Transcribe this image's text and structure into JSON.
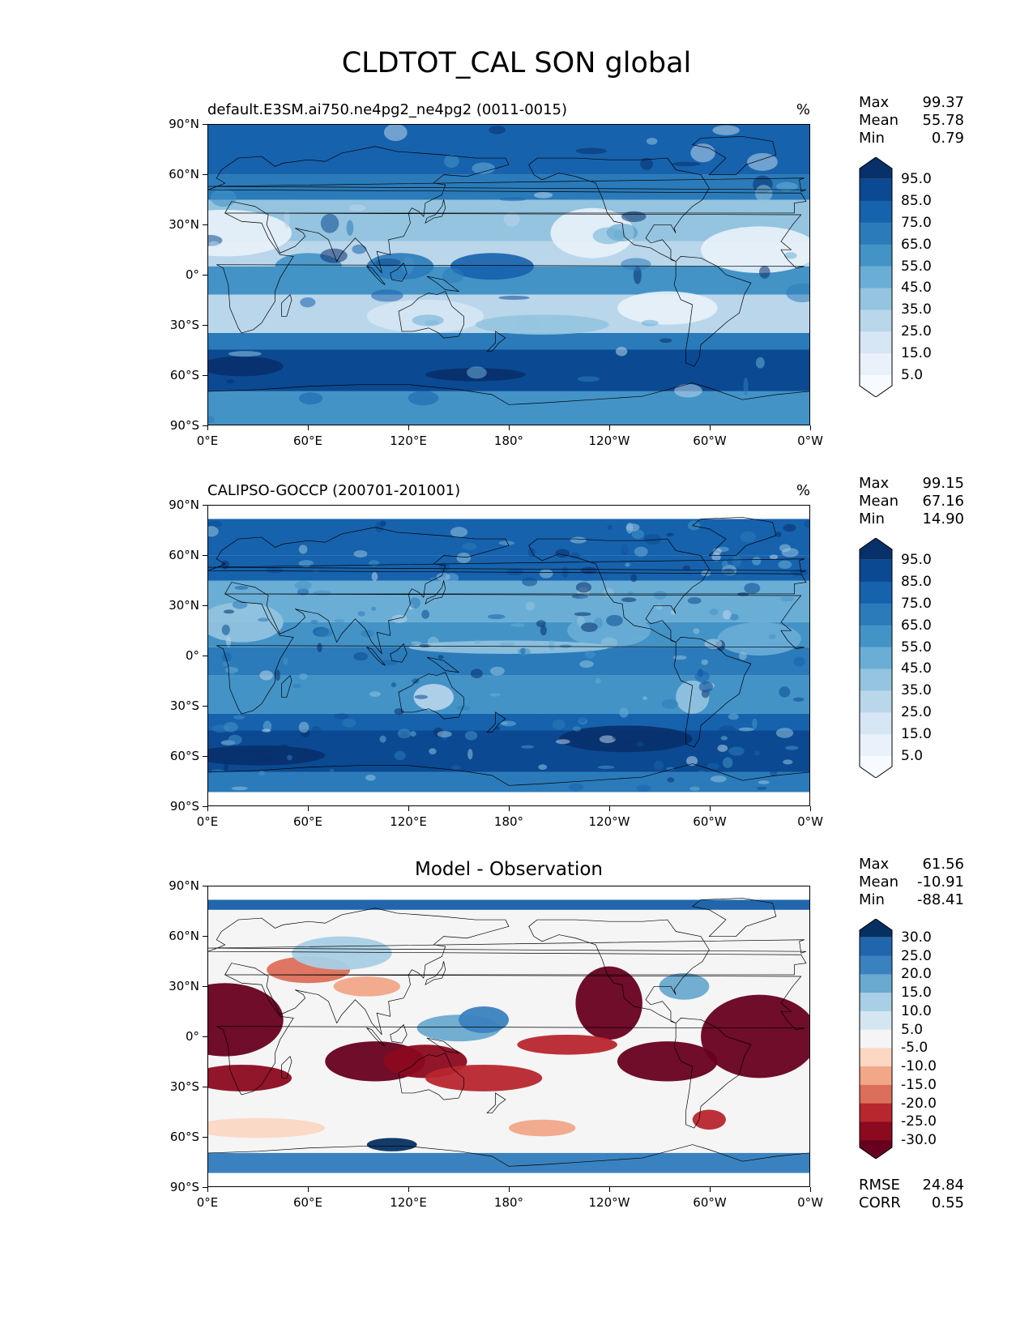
{
  "figure_title": "CLDTOT_CAL SON global",
  "x_ticks": [
    "0°E",
    "60°E",
    "120°E",
    "180°",
    "120°W",
    "60°W",
    "0°W"
  ],
  "y_ticks": [
    "90°N",
    "60°N",
    "30°N",
    "0°",
    "30°S",
    "60°S",
    "90°S"
  ],
  "panels": [
    {
      "title": "default.E3SM.ai750.ne4pg2_ne4pg2 (0011-0015)",
      "units": "%",
      "stats": [
        {
          "label": "Max",
          "value": "99.37"
        },
        {
          "label": "Mean",
          "value": "55.78"
        },
        {
          "label": "Min",
          "value": "0.79"
        }
      ],
      "colorbar": {
        "labels": [
          "95.0",
          "85.0",
          "75.0",
          "65.0",
          "55.0",
          "45.0",
          "35.0",
          "25.0",
          "15.0",
          "5.0"
        ],
        "colors": [
          "#08306b",
          "#0b4a92",
          "#1762ad",
          "#2b7bba",
          "#4393c7",
          "#6aaed6",
          "#94c4df",
          "#bad6eb",
          "#d6e6f4",
          "#e9f2fa",
          "#f7fbff"
        ]
      }
    },
    {
      "title": "CALIPSO-GOCCP (200701-201001)",
      "units": "%",
      "stats": [
        {
          "label": "Max",
          "value": "99.15"
        },
        {
          "label": "Mean",
          "value": "67.16"
        },
        {
          "label": "Min",
          "value": "14.90"
        }
      ],
      "colorbar": {
        "labels": [
          "95.0",
          "85.0",
          "75.0",
          "65.0",
          "55.0",
          "45.0",
          "35.0",
          "25.0",
          "15.0",
          "5.0"
        ],
        "colors": [
          "#08306b",
          "#0b4a92",
          "#1762ad",
          "#2b7bba",
          "#4393c7",
          "#6aaed6",
          "#94c4df",
          "#bad6eb",
          "#d6e6f4",
          "#e9f2fa",
          "#f7fbff"
        ]
      }
    },
    {
      "title": "Model - Observation",
      "units": "",
      "stats": [
        {
          "label": "Max",
          "value": "61.56"
        },
        {
          "label": "Mean",
          "value": "-10.91"
        },
        {
          "label": "Min",
          "value": "-88.41"
        }
      ],
      "bottom_stats": [
        {
          "label": "RMSE",
          "value": "24.84"
        },
        {
          "label": "CORR",
          "value": "0.55"
        }
      ],
      "colorbar": {
        "labels": [
          "30.0",
          "25.0",
          "20.0",
          "15.0",
          "10.0",
          "5.0",
          "-5.0",
          "-10.0",
          "-15.0",
          "-20.0",
          "-25.0",
          "-30.0"
        ],
        "colors": [
          "#053061",
          "#2166ac",
          "#3a82bf",
          "#6aa9d0",
          "#a8cfe5",
          "#d4e6f1",
          "#f5f5f5",
          "#fbd7c4",
          "#f1a788",
          "#dc6f5b",
          "#b8262e",
          "#8b0a1f",
          "#67001f"
        ]
      }
    }
  ]
}
